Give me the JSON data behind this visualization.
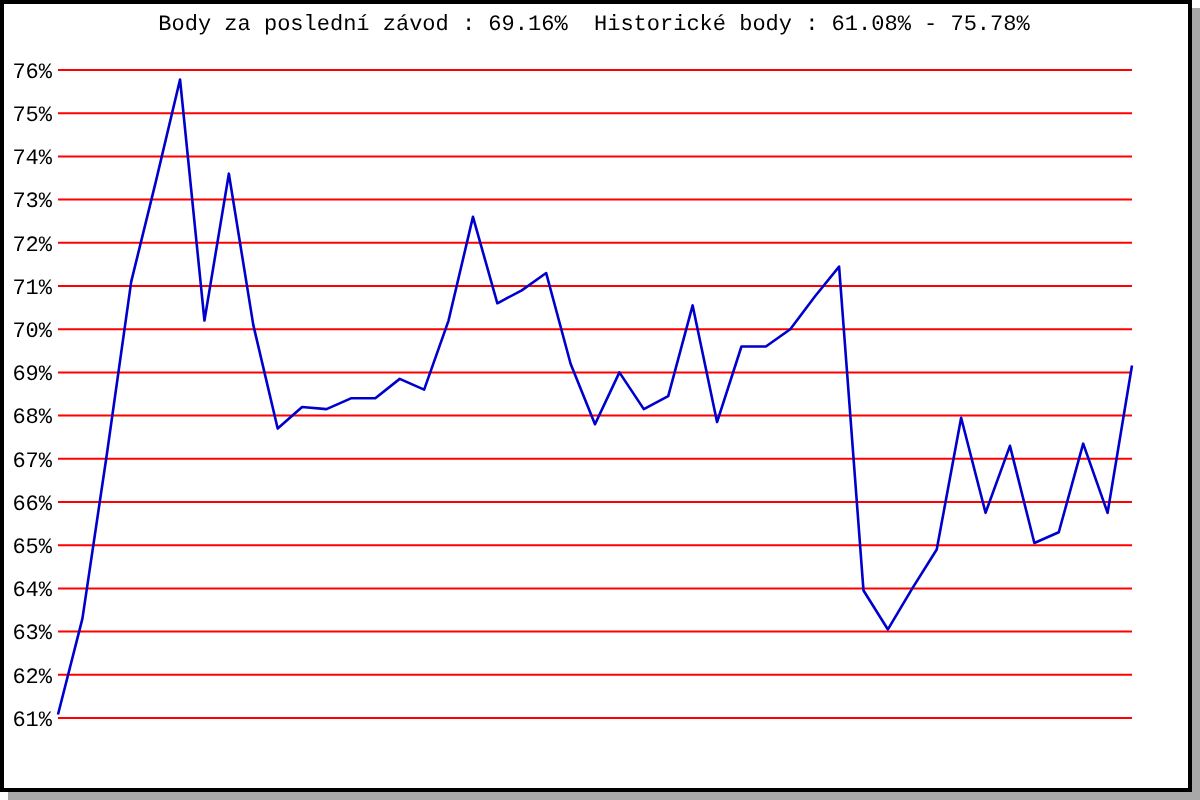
{
  "chart_data": {
    "type": "line",
    "title": "Body za poslední závod : 69.16%  Historické body : 61.08% - 75.78%",
    "categories": [
      null,
      null,
      null,
      null,
      null,
      null,
      null,
      null,
      null,
      null,
      null,
      null,
      null,
      null,
      null,
      null,
      null,
      null,
      null,
      null,
      null,
      null,
      null,
      null,
      null,
      null,
      null,
      null,
      null,
      null,
      null,
      null,
      null,
      null,
      null,
      null,
      null,
      null,
      null,
      null,
      null,
      null,
      null,
      null,
      null
    ],
    "series": [
      {
        "color": "#0000cc",
        "values": [
          61.08,
          63.3,
          67.1,
          71.1,
          73.4,
          75.78,
          70.2,
          73.6,
          70.1,
          67.7,
          68.2,
          68.15,
          68.4,
          68.4,
          68.85,
          68.6,
          70.2,
          72.6,
          70.6,
          70.9,
          71.3,
          69.2,
          67.8,
          69.0,
          68.15,
          68.45,
          70.55,
          67.85,
          69.6,
          69.6,
          70.0,
          70.75,
          71.45,
          63.95,
          63.05,
          64.0,
          64.9,
          67.95,
          65.75,
          67.3,
          65.05,
          65.3,
          67.35,
          65.75,
          69.16
        ]
      }
    ],
    "ylim": [
      61,
      76
    ],
    "yticks": [
      {
        "value": 61,
        "label": "61%"
      },
      {
        "value": 62,
        "label": "62%"
      },
      {
        "value": 63,
        "label": "63%"
      },
      {
        "value": 64,
        "label": "64%"
      },
      {
        "value": 65,
        "label": "65%"
      },
      {
        "value": 66,
        "label": "66%"
      },
      {
        "value": 67,
        "label": "67%"
      },
      {
        "value": 68,
        "label": "68%"
      },
      {
        "value": 69,
        "label": "69%"
      },
      {
        "value": 70,
        "label": "70%"
      },
      {
        "value": 71,
        "label": "71%"
      },
      {
        "value": 72,
        "label": "72%"
      },
      {
        "value": 73,
        "label": "73%"
      },
      {
        "value": 74,
        "label": "74%"
      },
      {
        "value": 75,
        "label": "75%"
      },
      {
        "value": 76,
        "label": "76%"
      }
    ],
    "grid": "y",
    "tick_labels": "y",
    "marker": "none",
    "line_style": "solid"
  }
}
